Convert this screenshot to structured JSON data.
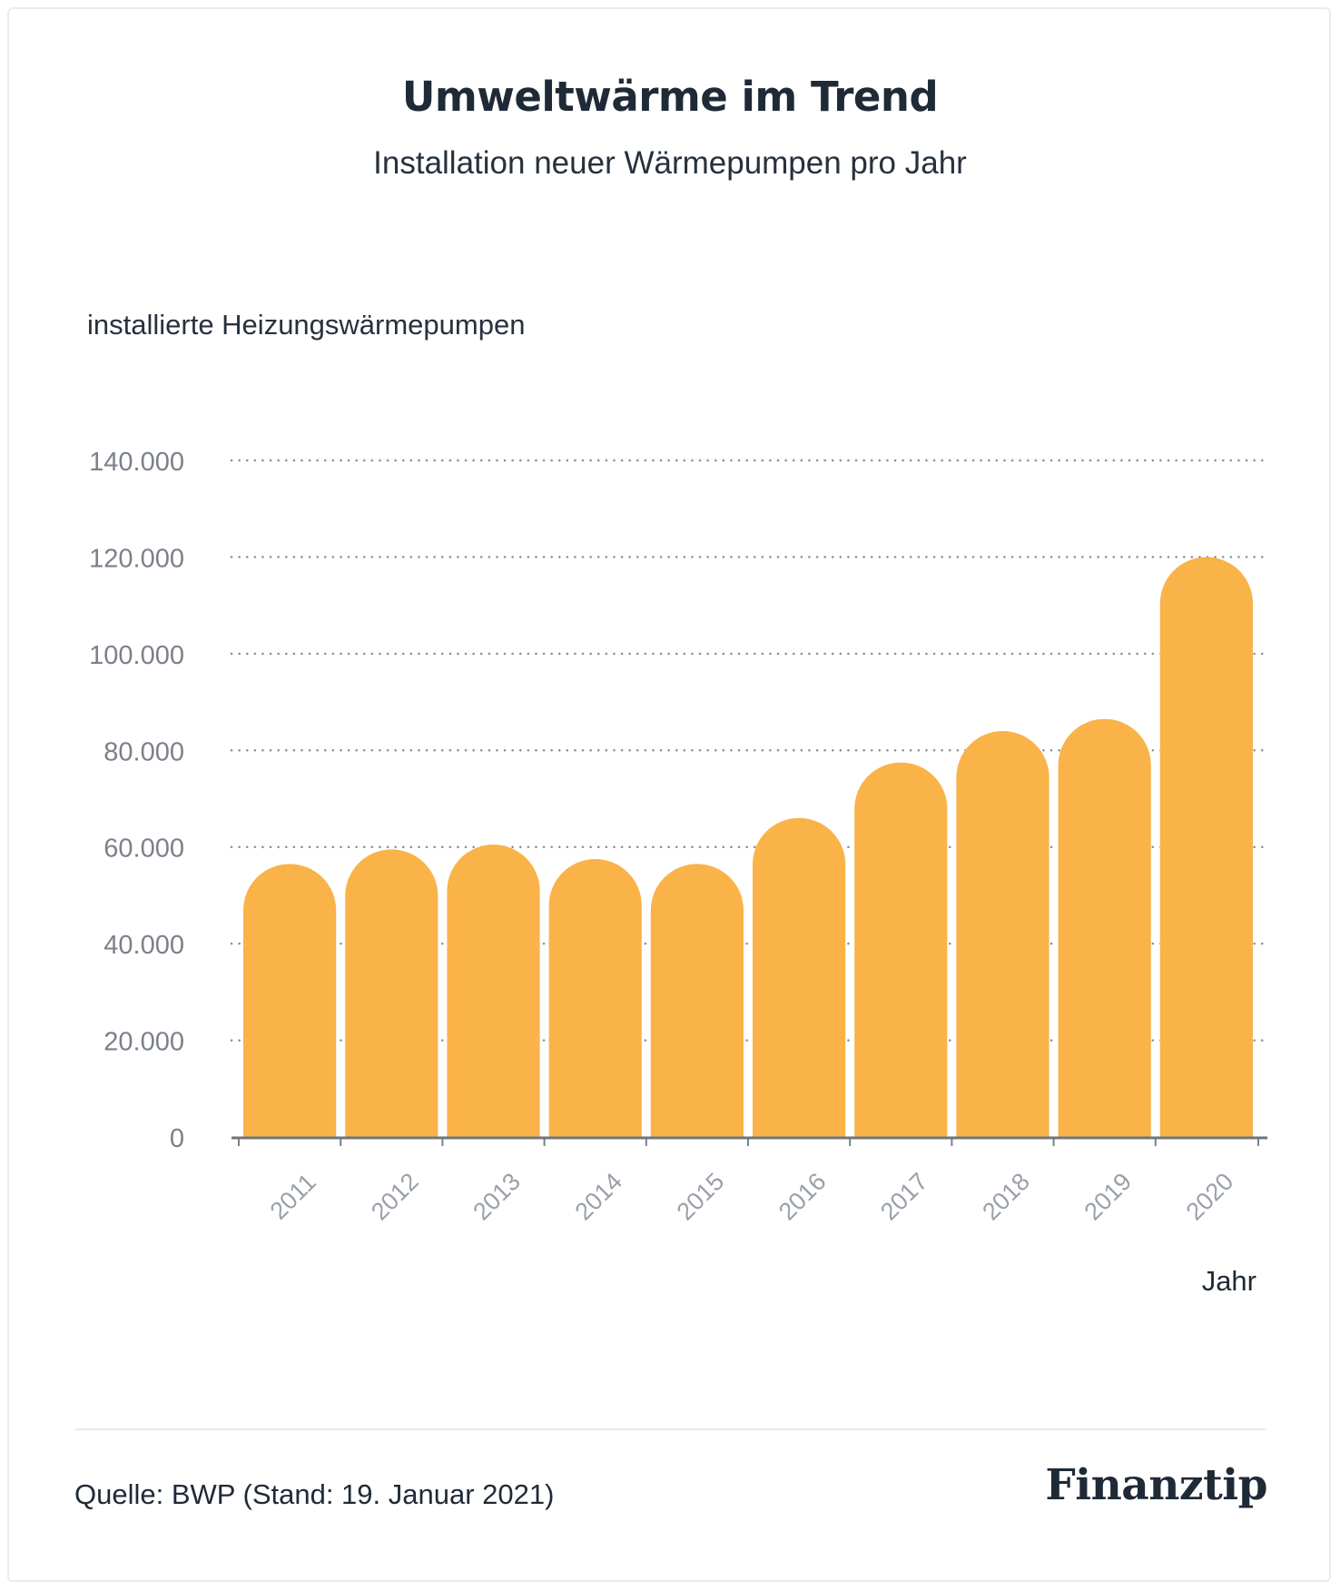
{
  "header": {
    "title": "Umweltwärme im Trend",
    "subtitle": "Installation neuer Wärmepumpen pro Jahr"
  },
  "chart_data": {
    "type": "bar",
    "title": "Umweltwärme im Trend",
    "subtitle": "Installation neuer Wärmepumpen pro Jahr",
    "ylabel": "installierte Heizungswärmepumpen",
    "xlabel": "Jahr",
    "categories": [
      "2011",
      "2012",
      "2013",
      "2014",
      "2015",
      "2016",
      "2017",
      "2018",
      "2019",
      "2020"
    ],
    "values": [
      56500,
      59500,
      60500,
      57500,
      56500,
      66000,
      77500,
      84000,
      86500,
      120000
    ],
    "ylim": [
      0,
      140000
    ],
    "yticks": [
      0,
      20000,
      40000,
      60000,
      80000,
      100000,
      120000,
      140000
    ],
    "ytick_labels": [
      "0",
      "20.000",
      "40.000",
      "60.000",
      "80.000",
      "100.000",
      "120.000",
      "140.000"
    ],
    "grid": "horizontal dotted",
    "bar_color": "#f9b349"
  },
  "footer": {
    "source": "Quelle: BWP (Stand: 19. Januar 2021)",
    "logo": "Finanztip"
  }
}
